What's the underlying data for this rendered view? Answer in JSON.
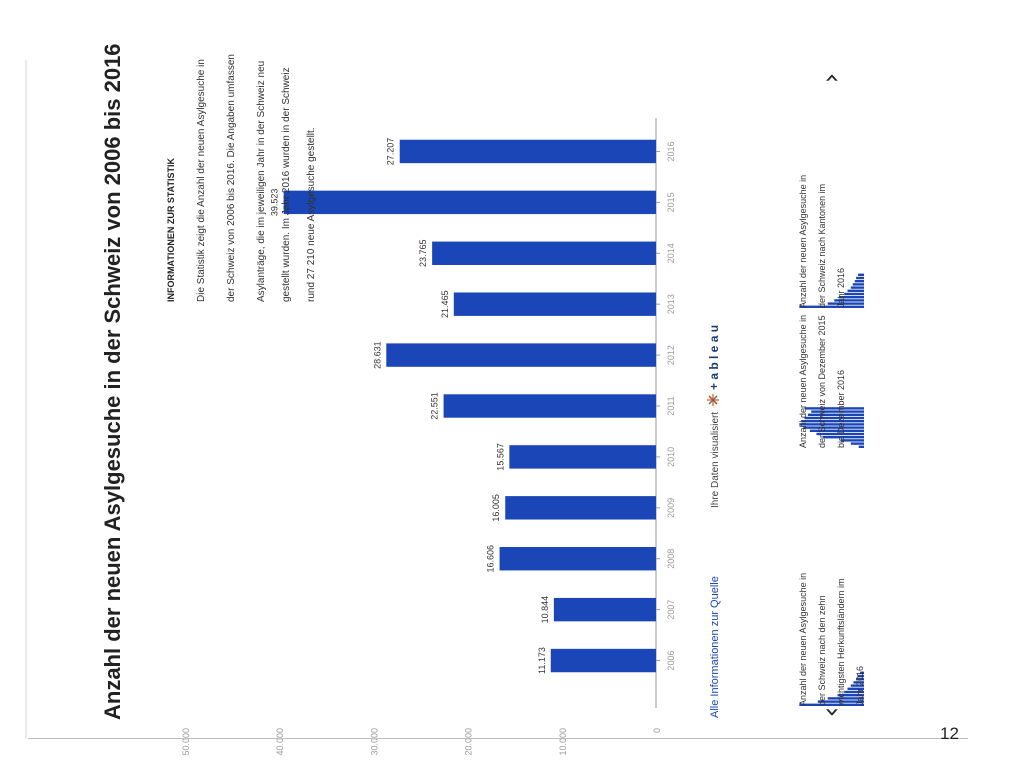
{
  "title": "Anzahl der neuen Asylgesuche in der Schweiz von 2006 bis 2016",
  "info": {
    "heading": "INFORMATIONEN ZUR STATISTIK",
    "lines": [
      "Die Statistik zeigt die Anzahl der neuen Asylgesuche in",
      "der Schweiz von 2006 bis 2016. Die Angaben umfassen",
      "Asylanträge, die im jeweiligen Jahr in der Schweiz neu",
      "gestellt wurden. Im Jahr 2016 wurden in der Schweiz",
      "rund 27 210 neue Asylgesuche gestellt."
    ]
  },
  "source_link": "Alle Informationen zur Quelle",
  "tableau": {
    "caption": "Ihre Daten visualisiert",
    "logo_text": "+ a b l e a u"
  },
  "thumbnails": [
    {
      "lines": [
        "Anzahl der neuen Asylgesuche in",
        "der Schweiz nach den zehn",
        "wichtigsten Herkunftsländern im",
        "Jahr 2016"
      ],
      "bars": [
        0.98,
        0.7,
        0.55,
        0.4,
        0.3,
        0.25,
        0.2,
        0.16,
        0.12,
        0.1,
        0.06
      ]
    },
    {
      "lines": [
        "Anzahl der neuen Asylgesuche in",
        "der Schweiz von Dezember 2015",
        "bis Dezember 2016"
      ],
      "bars": [
        0.08,
        0.2,
        0.35,
        0.62,
        0.72,
        0.82,
        0.92,
        0.98,
        0.95,
        0.9,
        0.85,
        0.8,
        0.9
      ]
    },
    {
      "lines": [
        "Anzahl der neuen Asylgesuche in",
        "der Schweiz nach Kantonen im",
        "Jahr 2016"
      ],
      "bars": [
        0.98,
        0.55,
        0.45,
        0.38,
        0.3,
        0.25,
        0.2,
        0.17,
        0.14,
        0.12,
        0.09
      ]
    }
  ],
  "nav": {
    "prev": "‹",
    "next": "›"
  },
  "page_number": "12",
  "colors": {
    "bar": "#1a46b8",
    "link": "#1a46b8",
    "axis": "#9a9a9a",
    "text": "#222222"
  },
  "chart_data": {
    "type": "bar",
    "orientation": "vertical",
    "render_rotation_deg": -90,
    "categories": [
      "2006",
      "2007",
      "2008",
      "2009",
      "2010",
      "2011",
      "2012",
      "2013",
      "2014",
      "2015",
      "2016"
    ],
    "values": [
      11173,
      10844,
      16606,
      16005,
      15567,
      22551,
      28631,
      21465,
      23765,
      39523,
      27207
    ],
    "data_labels": [
      "11.173",
      "10.844",
      "16.606",
      "16.005",
      "15.567",
      "22.551",
      "28.631",
      "21.465",
      "23.765",
      "39.523",
      "27.207"
    ],
    "yticks": [
      0,
      10000,
      20000,
      30000,
      40000,
      50000
    ],
    "ytick_labels": [
      "0",
      "10.000",
      "20.000",
      "30.000",
      "40.000",
      "50.000"
    ],
    "ylim": [
      0,
      50000
    ],
    "grid": false,
    "xlabel": "",
    "ylabel": ""
  }
}
